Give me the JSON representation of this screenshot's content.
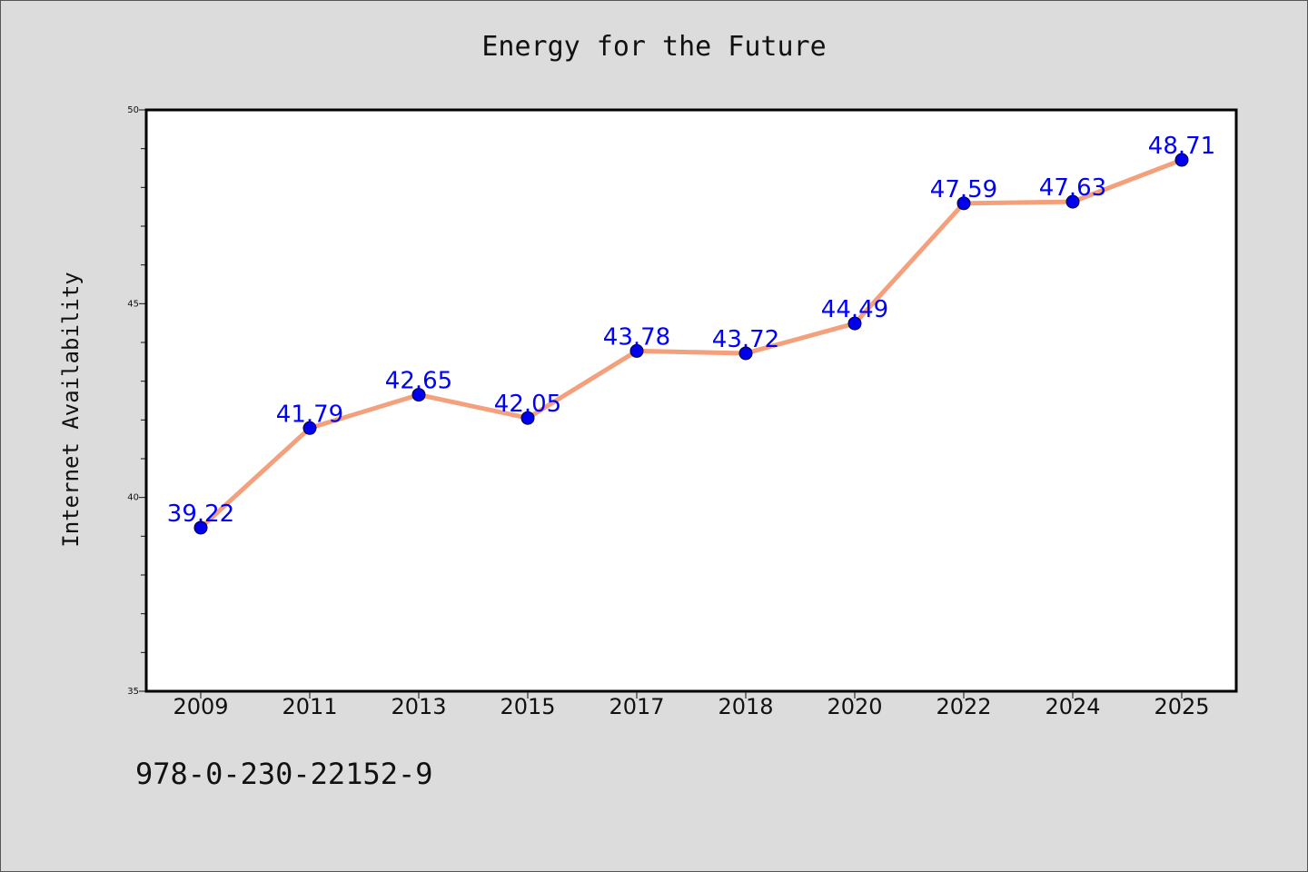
{
  "chart_data": {
    "type": "line",
    "title": "Energy for the Future",
    "xlabel": "",
    "ylabel": "Internet Availability",
    "categories": [
      "2009",
      "2011",
      "2013",
      "2015",
      "2017",
      "2018",
      "2020",
      "2022",
      "2024",
      "2025"
    ],
    "series": [
      {
        "values": [
          39.22,
          41.79,
          42.65,
          42.05,
          43.78,
          43.72,
          44.49,
          47.59,
          47.63,
          48.71
        ],
        "data_labels": [
          "39.22",
          "41.79",
          "42.65",
          "42.05",
          "43.78",
          "43.72",
          "44.49",
          "47.59",
          "47.63",
          "48.71"
        ]
      }
    ],
    "ylim": [
      35,
      50
    ],
    "yticks": [
      "35",
      "40",
      "45",
      "50"
    ],
    "grid": false,
    "colors": {
      "line": "#f4a07c",
      "marker": "#0000ee",
      "label": "#0000ff",
      "plot_bg": "#ffffff",
      "figure_bg": "#dcdcdc"
    }
  },
  "footer": {
    "text": "978-0-230-22152-9"
  }
}
